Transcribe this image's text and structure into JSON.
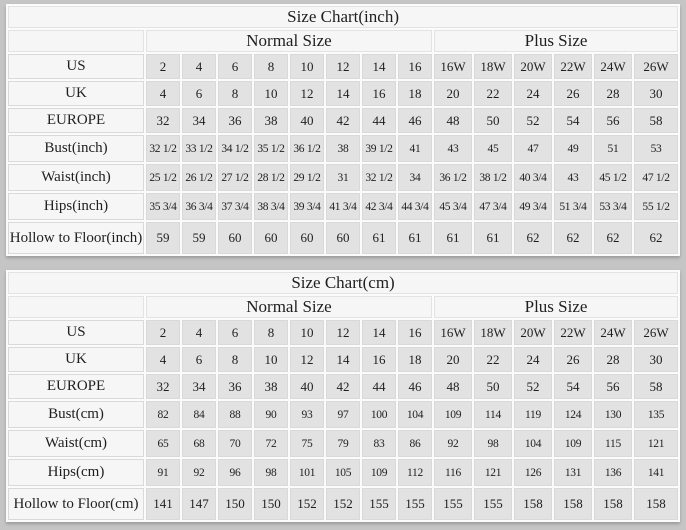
{
  "colors": {
    "page_bg": "#c5c5c5",
    "table_bg": "#fbfbfb",
    "cell_bg": "#e2e2e2",
    "label_bg": "#f6f6f6",
    "grid_line": "#d9d9d9",
    "text": "#1f1f1f"
  },
  "chart_data": [
    {
      "type": "table",
      "title": "Size Chart(inch)",
      "column_groups": [
        {
          "label": "Normal Size",
          "span": 8
        },
        {
          "label": "Plus Size",
          "span": 6
        }
      ],
      "rows": [
        {
          "label": "US",
          "values": [
            "2",
            "4",
            "6",
            "8",
            "10",
            "12",
            "14",
            "16",
            "16W",
            "18W",
            "20W",
            "22W",
            "24W",
            "26W"
          ]
        },
        {
          "label": "UK",
          "values": [
            "4",
            "6",
            "8",
            "10",
            "12",
            "14",
            "16",
            "18",
            "20",
            "22",
            "24",
            "26",
            "28",
            "30"
          ]
        },
        {
          "label": "EUROPE",
          "values": [
            "32",
            "34",
            "36",
            "38",
            "40",
            "42",
            "44",
            "46",
            "48",
            "50",
            "52",
            "54",
            "56",
            "58"
          ]
        },
        {
          "label": "Bust(inch)",
          "values": [
            "32 1/2",
            "33 1/2",
            "34 1/2",
            "35 1/2",
            "36 1/2",
            "38",
            "39 1/2",
            "41",
            "43",
            "45",
            "47",
            "49",
            "51",
            "53"
          ]
        },
        {
          "label": "Waist(inch)",
          "values": [
            "25 1/2",
            "26 1/2",
            "27 1/2",
            "28 1/2",
            "29 1/2",
            "31",
            "32 1/2",
            "34",
            "36 1/2",
            "38 1/2",
            "40 3/4",
            "43",
            "45 1/2",
            "47 1/2"
          ]
        },
        {
          "label": "Hips(inch)",
          "values": [
            "35 3/4",
            "36 3/4",
            "37 3/4",
            "38 3/4",
            "39 3/4",
            "41 3/4",
            "42 3/4",
            "44 3/4",
            "45 3/4",
            "47 3/4",
            "49 3/4",
            "51 3/4",
            "53 3/4",
            "55 1/2"
          ]
        },
        {
          "label": "Hollow to Floor(inch)",
          "values": [
            "59",
            "59",
            "60",
            "60",
            "60",
            "60",
            "61",
            "61",
            "61",
            "61",
            "62",
            "62",
            "62",
            "62"
          ]
        }
      ]
    },
    {
      "type": "table",
      "title": "Size Chart(cm)",
      "column_groups": [
        {
          "label": "Normal Size",
          "span": 8
        },
        {
          "label": "Plus Size",
          "span": 6
        }
      ],
      "rows": [
        {
          "label": "US",
          "values": [
            "2",
            "4",
            "6",
            "8",
            "10",
            "12",
            "14",
            "16",
            "16W",
            "18W",
            "20W",
            "22W",
            "24W",
            "26W"
          ]
        },
        {
          "label": "UK",
          "values": [
            "4",
            "6",
            "8",
            "10",
            "12",
            "14",
            "16",
            "18",
            "20",
            "22",
            "24",
            "26",
            "28",
            "30"
          ]
        },
        {
          "label": "EUROPE",
          "values": [
            "32",
            "34",
            "36",
            "38",
            "40",
            "42",
            "44",
            "46",
            "48",
            "50",
            "52",
            "54",
            "56",
            "58"
          ]
        },
        {
          "label": "Bust(cm)",
          "values": [
            "82",
            "84",
            "88",
            "90",
            "93",
            "97",
            "100",
            "104",
            "109",
            "114",
            "119",
            "124",
            "130",
            "135"
          ]
        },
        {
          "label": "Waist(cm)",
          "values": [
            "65",
            "68",
            "70",
            "72",
            "75",
            "79",
            "83",
            "86",
            "92",
            "98",
            "104",
            "109",
            "115",
            "121"
          ]
        },
        {
          "label": "Hips(cm)",
          "values": [
            "91",
            "92",
            "96",
            "98",
            "101",
            "105",
            "109",
            "112",
            "116",
            "121",
            "126",
            "131",
            "136",
            "141"
          ]
        },
        {
          "label": "Hollow to Floor(cm)",
          "values": [
            "141",
            "147",
            "150",
            "150",
            "152",
            "152",
            "155",
            "155",
            "155",
            "155",
            "158",
            "158",
            "158",
            "158"
          ]
        }
      ]
    }
  ]
}
